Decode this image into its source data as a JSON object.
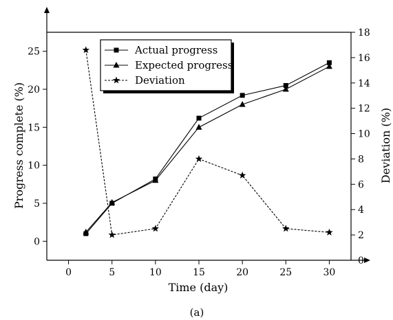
{
  "chart_data": {
    "type": "line",
    "caption": "(a)",
    "xlabel": "Time (day)",
    "ylabel_left": "Progress complete (%)",
    "ylabel_right": "Deviation (%)",
    "x_ticks": [
      0,
      5,
      10,
      15,
      20,
      25,
      30
    ],
    "y_left_ticks": [
      0,
      5,
      10,
      15,
      20,
      25
    ],
    "y_right_ticks": [
      0,
      2,
      4,
      6,
      8,
      10,
      12,
      14,
      16,
      18
    ],
    "xlim": [
      -2.5,
      32.5
    ],
    "ylim_left": [
      -2.5,
      27.5
    ],
    "ylim_right": [
      0,
      18
    ],
    "legend_position": "top-center",
    "grid": false,
    "series": [
      {
        "name": "Actual progress",
        "axis": "left",
        "marker": "square",
        "line": "solid",
        "x": [
          2,
          5,
          10,
          15,
          20,
          25,
          30
        ],
        "values": [
          1.0,
          5.0,
          8.2,
          16.2,
          19.2,
          20.5,
          23.5
        ]
      },
      {
        "name": "Expected progress",
        "axis": "left",
        "marker": "triangle",
        "line": "solid",
        "x": [
          2,
          5,
          10,
          15,
          20,
          25,
          30
        ],
        "values": [
          1.2,
          5.1,
          8.0,
          15.0,
          18.0,
          20.0,
          23.0
        ]
      },
      {
        "name": "Deviation",
        "axis": "right",
        "marker": "star",
        "line": "dashed",
        "x": [
          2,
          5,
          10,
          15,
          20,
          25,
          30
        ],
        "values": [
          16.6,
          2.0,
          2.5,
          8.0,
          6.7,
          2.5,
          2.2
        ]
      }
    ]
  }
}
